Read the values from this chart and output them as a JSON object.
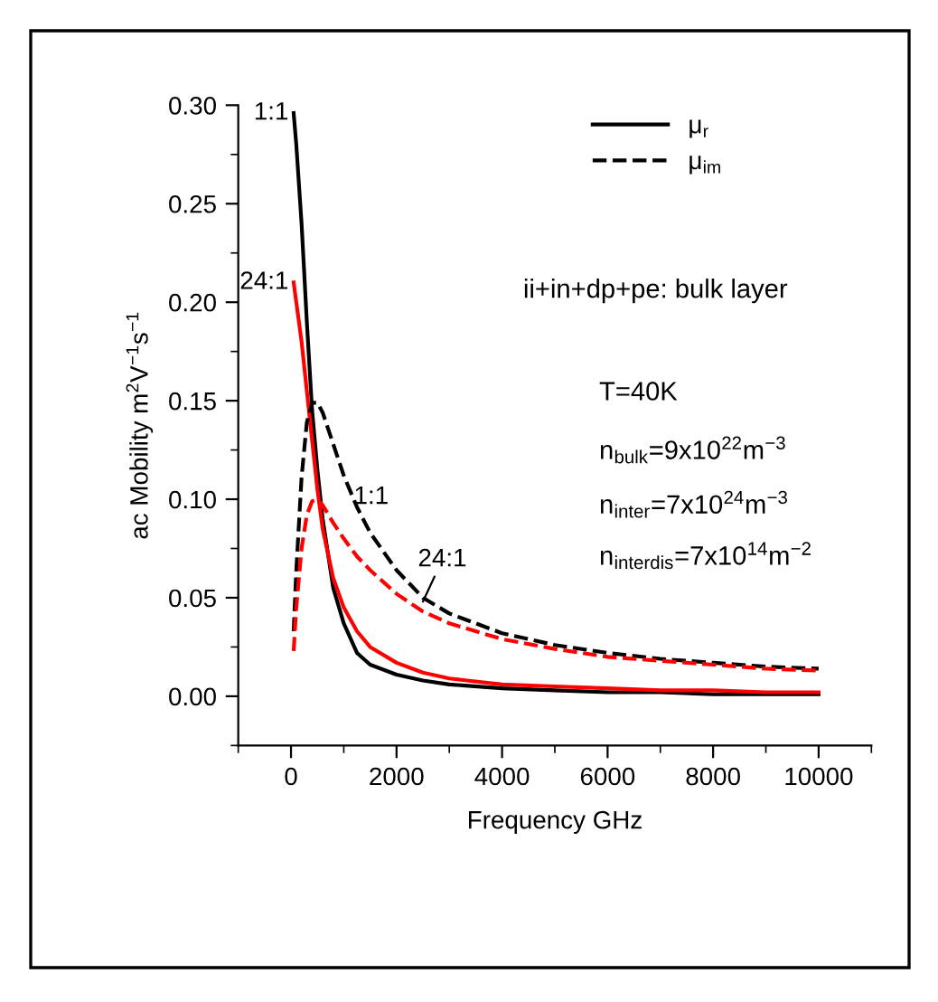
{
  "chart_data": {
    "type": "line",
    "xlabel": "Frequency GHz",
    "ylabel": "ac Mobility m$^{2}$V$^{−1}$s$^{−1}$",
    "x": [
      50,
      100,
      200,
      300,
      400,
      500,
      600,
      800,
      1000,
      1250,
      1500,
      2000,
      2500,
      3000,
      4000,
      5000,
      6000,
      7000,
      8000,
      9000,
      10000
    ],
    "series": [
      {
        "name": "μ$_{r}$",
        "color": "#000000",
        "line_style": "solid",
        "values": [
          0.296,
          0.28,
          0.24,
          0.19,
          0.145,
          0.115,
          0.09,
          0.055,
          0.037,
          0.022,
          0.016,
          0.011,
          0.008,
          0.006,
          0.004,
          0.003,
          0.002,
          0.002,
          0.001,
          0.001,
          0.001
        ]
      },
      {
        "color": "#ff0000",
        "line_style": "solid",
        "values": [
          0.21,
          0.2,
          0.18,
          0.155,
          0.13,
          0.105,
          0.085,
          0.06,
          0.045,
          0.033,
          0.025,
          0.017,
          0.012,
          0.009,
          0.006,
          0.005,
          0.004,
          0.003,
          0.003,
          0.002,
          0.002
        ]
      },
      {
        "name": "μ$_{im}$",
        "color": "#000000",
        "line_style": "dashed",
        "values": [
          0.033,
          0.064,
          0.111,
          0.139,
          0.149,
          0.149,
          0.144,
          0.128,
          0.112,
          0.096,
          0.083,
          0.064,
          0.05,
          0.042,
          0.032,
          0.026,
          0.022,
          0.019,
          0.017,
          0.015,
          0.014
        ]
      },
      {
        "color": "#ff0000",
        "line_style": "dashed",
        "values": [
          0.023,
          0.045,
          0.075,
          0.092,
          0.099,
          0.1,
          0.097,
          0.088,
          0.08,
          0.071,
          0.064,
          0.052,
          0.043,
          0.037,
          0.029,
          0.024,
          0.02,
          0.018,
          0.016,
          0.014,
          0.013
        ]
      }
    ],
    "xlim": [
      -1000,
      11000
    ],
    "xticks": [
      0,
      2000,
      4000,
      6000,
      8000,
      10000
    ],
    "ylim": [
      -0.025,
      0.3
    ],
    "yticks": [
      {
        "value": 0,
        "label": "0.00"
      },
      {
        "value": 0.05,
        "label": "0.05"
      },
      {
        "value": 0.1,
        "label": "0.10"
      },
      {
        "value": 0.15,
        "label": "0.15"
      },
      {
        "value": 0.2,
        "label": "0.20"
      },
      {
        "value": 0.25,
        "label": "0.25"
      },
      {
        "value": 0.3,
        "label": "0.30"
      }
    ],
    "grid": false,
    "legend": "top right",
    "annotations": [
      {
        "text": "1:1",
        "x": 50,
        "y": 0.296
      },
      {
        "text": "24:1",
        "x": 50,
        "y": 0.21
      },
      {
        "text": "1:1",
        "x": 1000,
        "y": 0.112
      },
      {
        "text": "24:1",
        "x": 2500,
        "y": 0.048
      },
      "ii+in+dp+pe: bulk layer",
      "T=40K",
      "n$_{bulk}$=9x10$^{22}$m$^{−3}$",
      "n$_{inter}$=7x10$^{24}$m$^{−3}$",
      "n$_{interdis}$=7x10$^{14}$m$^{−2}$"
    ]
  }
}
